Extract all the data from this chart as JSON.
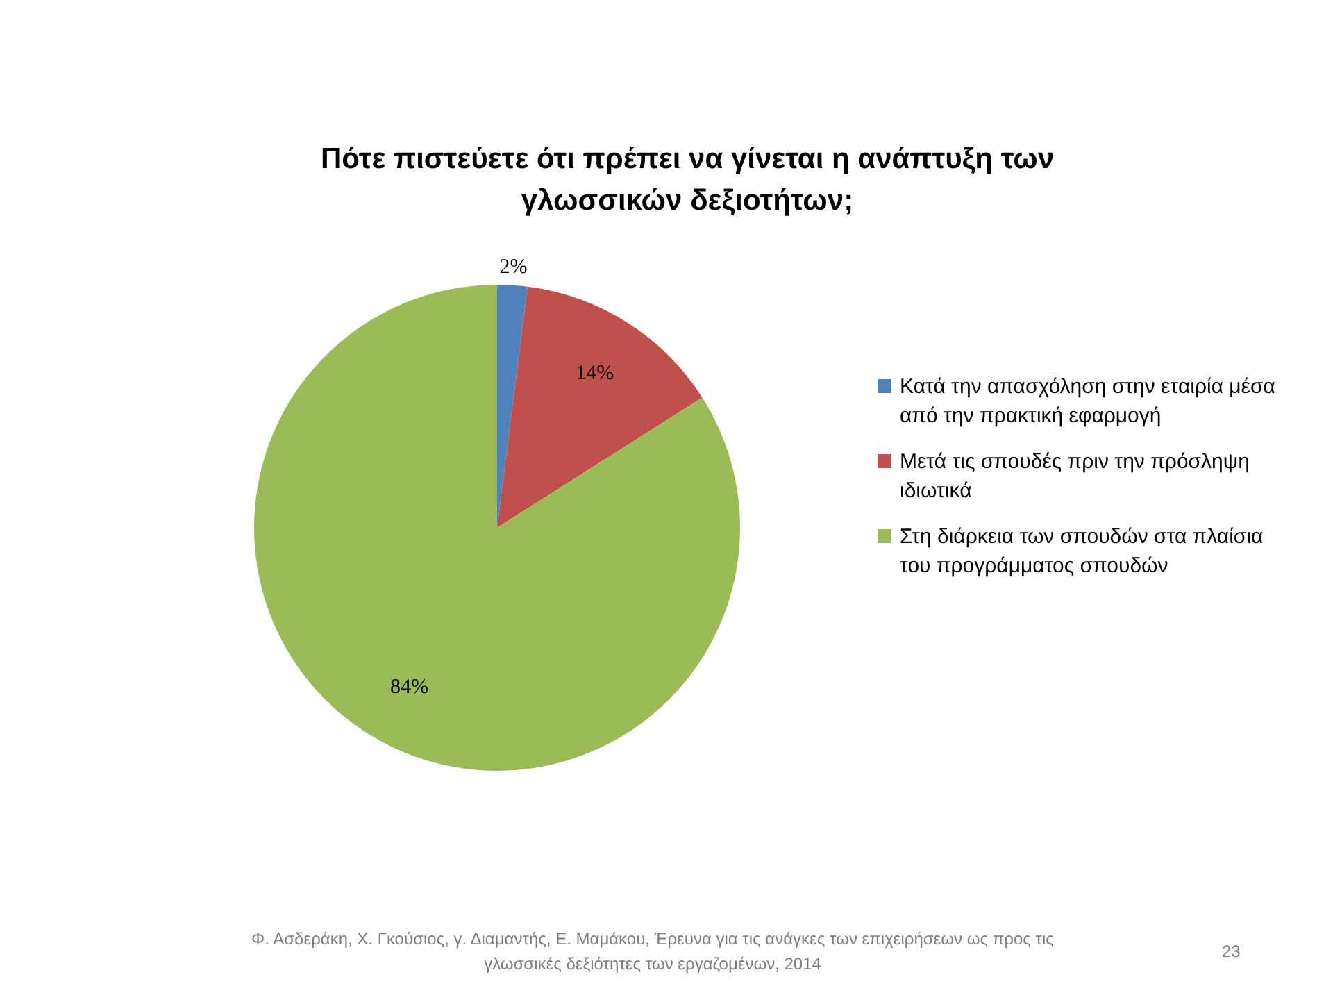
{
  "chart_data": {
    "type": "pie",
    "title": "Πότε πιστεύετε ότι πρέπει να γίνεται η ανάπτυξη των γλωσσικών δεξιοτήτων;",
    "categories": [
      "Κατά την απασχόληση στην εταιρία μέσα από την πρακτική εφαρμογή",
      "Μετά τις σπουδές πριν την πρόσληψη ιδιωτικά",
      "Στη διάρκεια των σπουδών στα πλαίσια του προγράμματος σπουδών"
    ],
    "values": [
      2,
      14,
      84
    ],
    "value_labels": [
      "2%",
      "14%",
      "84%"
    ],
    "colors": [
      "#4f81bd",
      "#c0504d",
      "#9bbb59"
    ],
    "legend": "right",
    "annotations": [
      "Φ. Ασδεράκη, Χ. Γκούσιος, γ. Διαμαντής, Ε. Μαμάκου, Έρευνα για τις ανάγκες των επιχειρήσεων ως προς τις γλωσσικές δεξιότητες των εργαζομένων, 2014",
      "23"
    ]
  }
}
